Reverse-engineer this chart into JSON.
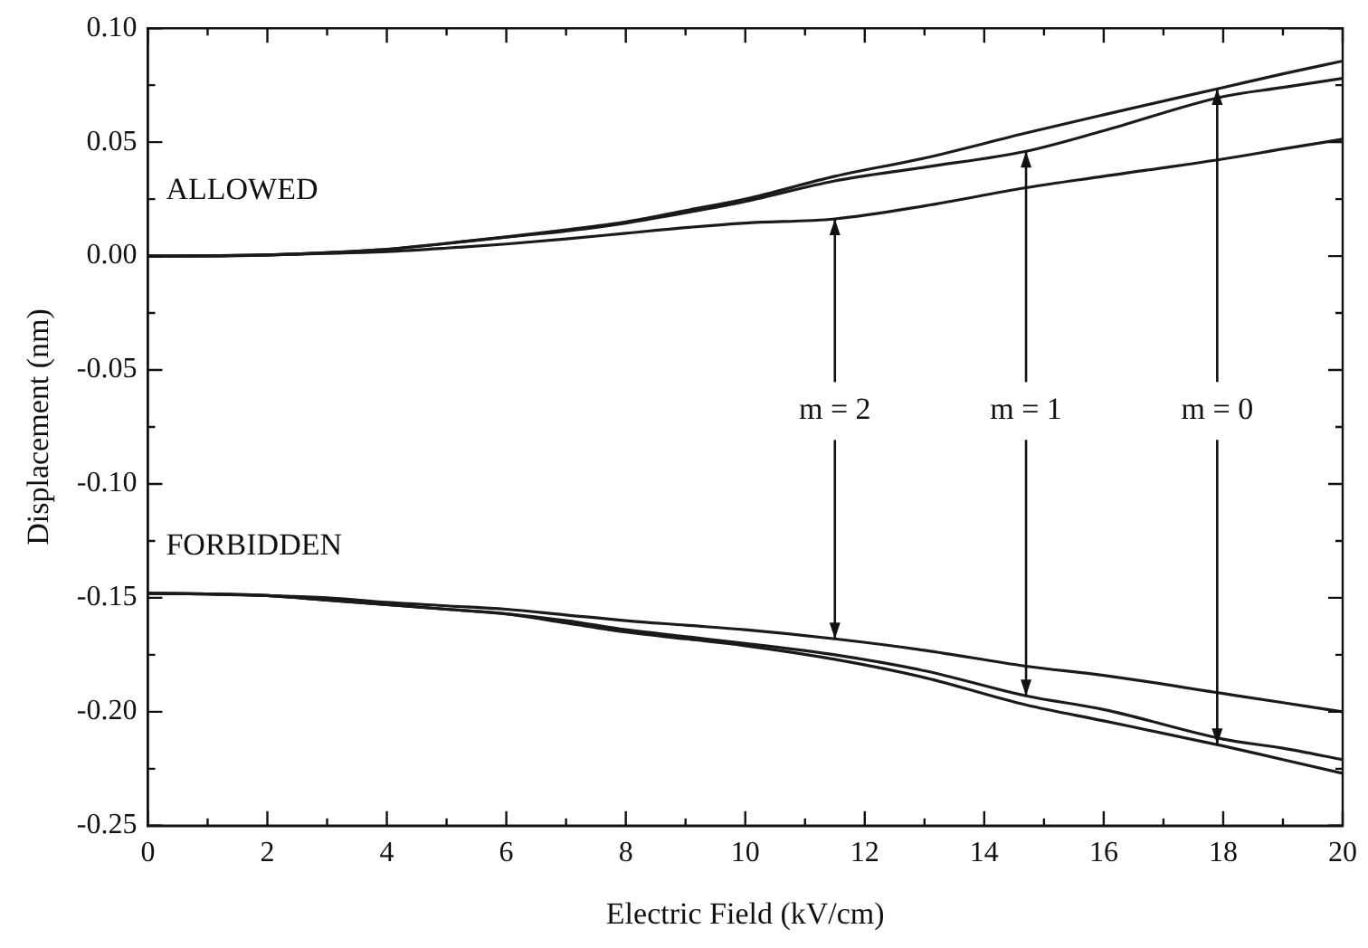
{
  "chart_data": {
    "type": "line",
    "xlabel": "Electric Field (kV/cm)",
    "ylabel": "Displacement (nm)",
    "x": [
      0,
      1,
      2,
      3,
      4,
      5,
      6,
      7,
      8,
      9,
      10,
      11.5,
      13,
      14.7,
      16,
      18,
      19,
      20
    ],
    "series": [
      {
        "color": "#1a1a1a",
        "values": [
          0,
          0.0001,
          0.0005,
          0.0012,
          0.002,
          0.0035,
          0.0053,
          0.0075,
          0.01,
          0.0125,
          0.0145,
          0.0163,
          0.022,
          0.03,
          0.035,
          0.0426,
          0.047,
          0.0513
        ]
      },
      {
        "color": "#1a1a1a",
        "values": [
          0,
          0.0001,
          0.0005,
          0.0015,
          0.003,
          0.0055,
          0.0083,
          0.011,
          0.0145,
          0.019,
          0.024,
          0.033,
          0.039,
          0.046,
          0.055,
          0.07,
          0.074,
          0.078
        ]
      },
      {
        "color": "#1a1a1a",
        "values": [
          0,
          0.0001,
          0.0005,
          0.0015,
          0.003,
          0.0056,
          0.0084,
          0.0115,
          0.015,
          0.02,
          0.025,
          0.035,
          0.043,
          0.054,
          0.062,
          0.074,
          0.08,
          0.0856
        ]
      },
      {
        "color": "#1a1a1a",
        "values": [
          -0.148,
          -0.1483,
          -0.149,
          -0.15,
          -0.152,
          -0.1535,
          -0.155,
          -0.1575,
          -0.16,
          -0.162,
          -0.164,
          -0.168,
          -0.173,
          -0.18,
          -0.184,
          -0.192,
          -0.196,
          -0.2
        ]
      },
      {
        "color": "#1a1a1a",
        "values": [
          -0.148,
          -0.1483,
          -0.149,
          -0.151,
          -0.153,
          -0.155,
          -0.157,
          -0.16,
          -0.164,
          -0.167,
          -0.17,
          -0.175,
          -0.182,
          -0.193,
          -0.199,
          -0.212,
          -0.216,
          -0.221
        ]
      },
      {
        "color": "#1a1a1a",
        "values": [
          -0.148,
          -0.1483,
          -0.149,
          -0.151,
          -0.153,
          -0.155,
          -0.157,
          -0.161,
          -0.165,
          -0.168,
          -0.171,
          -0.177,
          -0.185,
          -0.197,
          -0.204,
          -0.215,
          -0.221,
          -0.227
        ]
      }
    ],
    "xlim": [
      0,
      20
    ],
    "xticks": [
      0,
      {
        "value": 1,
        "label": null
      },
      2,
      {
        "value": 3,
        "label": null
      },
      4,
      {
        "value": 5,
        "label": null
      },
      6,
      {
        "value": 7,
        "label": null
      },
      8,
      {
        "value": 9,
        "label": null
      },
      10,
      {
        "value": 11,
        "label": null
      },
      12,
      {
        "value": 13,
        "label": null
      },
      14,
      {
        "value": 15,
        "label": null
      },
      16,
      {
        "value": 17,
        "label": null
      },
      18,
      {
        "value": 19,
        "label": null
      },
      20
    ],
    "ylim": [
      -0.25,
      0.1
    ],
    "yticks": [
      {
        "value": -0.25,
        "label": "-0.25"
      },
      {
        "value": -0.225,
        "label": null
      },
      {
        "value": -0.2,
        "label": "-0.20"
      },
      {
        "value": -0.175,
        "label": null
      },
      {
        "value": -0.15,
        "label": "-0.15"
      },
      {
        "value": -0.125,
        "label": null
      },
      {
        "value": -0.1,
        "label": "-0.10"
      },
      {
        "value": -0.075,
        "label": null
      },
      {
        "value": -0.05,
        "label": "-0.05"
      },
      {
        "value": -0.025,
        "label": null
      },
      {
        "value": 0,
        "label": "0.00"
      },
      {
        "value": 0.025,
        "label": null
      },
      {
        "value": 0.05,
        "label": "0.05"
      },
      {
        "value": 0.075,
        "label": null
      },
      {
        "value": 0.1,
        "label": "0.10"
      }
    ],
    "grid": false,
    "legend": false,
    "marker": "none",
    "line_style": "solid",
    "annotations": [
      "ALLOWED",
      "FORBIDDEN",
      {
        "text": "m = 2",
        "x": 11.5,
        "y": 0.0163
      },
      {
        "text": "m = 1",
        "x": 14.7,
        "y": 0.046
      },
      {
        "text": "m = 0",
        "x": 17.9,
        "y": 0.0735
      }
    ]
  }
}
